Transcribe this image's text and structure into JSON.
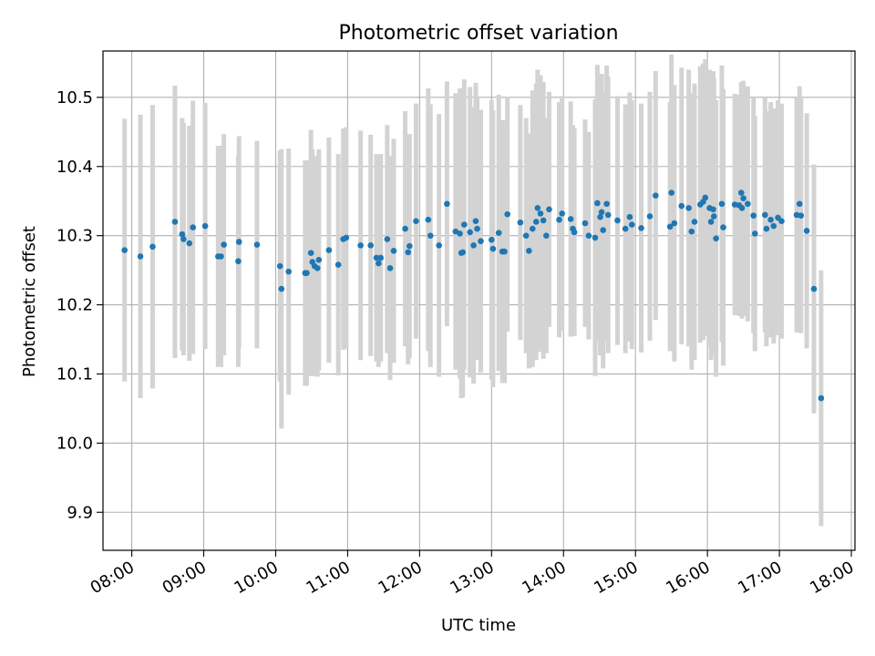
{
  "chart_data": {
    "type": "scatter",
    "title": "Photometric offset variation",
    "xlabel": "UTC time",
    "ylabel": "Photometric offset",
    "x_unit": "hours UTC",
    "xlim": [
      7.6,
      18.05
    ],
    "ylim": [
      9.845,
      10.567
    ],
    "grid": true,
    "xticks": [
      {
        "value": 8,
        "label": "08:00"
      },
      {
        "value": 9,
        "label": "09:00"
      },
      {
        "value": 10,
        "label": "10:00"
      },
      {
        "value": 11,
        "label": "11:00"
      },
      {
        "value": 12,
        "label": "12:00"
      },
      {
        "value": 13,
        "label": "13:00"
      },
      {
        "value": 14,
        "label": "14:00"
      },
      {
        "value": 15,
        "label": "15:00"
      },
      {
        "value": 16,
        "label": "16:00"
      },
      {
        "value": 17,
        "label": "17:00"
      },
      {
        "value": 18,
        "label": "18:00"
      }
    ],
    "yticks": [
      {
        "value": 9.9,
        "label": "9.9"
      },
      {
        "value": 10.0,
        "label": "10.0"
      },
      {
        "value": 10.1,
        "label": "10.1"
      },
      {
        "value": 10.2,
        "label": "10.2"
      },
      {
        "value": 10.3,
        "label": "10.3"
      },
      {
        "value": 10.4,
        "label": "10.4"
      },
      {
        "value": 10.5,
        "label": "10.5"
      }
    ],
    "colors": {
      "point": "#1f77b4",
      "errorbar": "#d3d3d3",
      "grid": "#b0b0b0"
    },
    "series": [
      {
        "x": [
          7.9,
          8.12,
          8.29,
          8.6,
          8.7,
          8.72,
          8.8,
          8.85,
          9.02,
          9.2,
          9.24,
          9.28,
          9.48,
          9.49,
          9.74,
          10.06,
          10.08,
          10.18,
          10.41,
          10.43,
          10.49,
          10.51,
          10.54,
          10.58,
          10.6,
          10.74,
          10.87,
          10.94,
          10.98,
          11.18,
          11.32,
          11.4,
          11.43,
          11.46,
          11.55,
          11.59,
          11.64,
          11.8,
          11.84,
          11.86,
          11.95,
          12.12,
          12.15,
          12.27,
          12.38,
          12.5,
          12.56,
          12.58,
          12.6,
          12.62,
          12.7,
          12.75,
          12.78,
          12.8,
          12.85,
          13.0,
          13.02,
          13.1,
          13.15,
          13.18,
          13.22,
          13.4,
          13.48,
          13.52,
          13.57,
          13.62,
          13.64,
          13.68,
          13.72,
          13.76,
          13.8,
          13.94,
          13.98,
          14.1,
          14.13,
          14.15,
          14.3,
          14.35,
          14.44,
          14.47,
          14.51,
          14.53,
          14.55,
          14.6,
          14.62,
          14.75,
          14.86,
          14.92,
          14.95,
          15.08,
          15.2,
          15.28,
          15.48,
          15.5,
          15.54,
          15.64,
          15.74,
          15.78,
          15.82,
          15.9,
          15.94,
          15.97,
          16.03,
          16.05,
          16.08,
          16.09,
          16.12,
          16.2,
          16.22,
          16.38,
          16.44,
          16.47,
          16.48,
          16.5,
          16.56,
          16.64,
          16.66,
          16.8,
          16.82,
          16.88,
          16.92,
          16.98,
          17.03,
          17.24,
          17.28,
          17.3,
          17.38,
          17.48,
          17.58
        ],
        "y": [
          10.279,
          10.27,
          10.284,
          10.32,
          10.302,
          10.295,
          10.289,
          10.312,
          10.314,
          10.27,
          10.27,
          10.287,
          10.263,
          10.291,
          10.287,
          10.256,
          10.223,
          10.248,
          10.246,
          10.246,
          10.275,
          10.262,
          10.256,
          10.253,
          10.265,
          10.279,
          10.258,
          10.295,
          10.297,
          10.286,
          10.286,
          10.268,
          10.26,
          10.268,
          10.295,
          10.253,
          10.278,
          10.31,
          10.276,
          10.285,
          10.321,
          10.323,
          10.3,
          10.286,
          10.346,
          10.306,
          10.303,
          10.275,
          10.276,
          10.316,
          10.305,
          10.286,
          10.321,
          10.31,
          10.292,
          10.294,
          10.281,
          10.304,
          10.277,
          10.277,
          10.331,
          10.319,
          10.3,
          10.278,
          10.31,
          10.32,
          10.34,
          10.332,
          10.322,
          10.3,
          10.338,
          10.323,
          10.332,
          10.324,
          10.31,
          10.305,
          10.318,
          10.3,
          10.297,
          10.347,
          10.327,
          10.334,
          10.308,
          10.346,
          10.33,
          10.322,
          10.31,
          10.327,
          10.316,
          10.311,
          10.328,
          10.358,
          10.313,
          10.362,
          10.318,
          10.343,
          10.34,
          10.306,
          10.32,
          10.345,
          10.349,
          10.355,
          10.34,
          10.32,
          10.338,
          10.328,
          10.296,
          10.346,
          10.312,
          10.345,
          10.344,
          10.362,
          10.34,
          10.354,
          10.346,
          10.329,
          10.303,
          10.33,
          10.31,
          10.323,
          10.314,
          10.326,
          10.321,
          10.33,
          10.346,
          10.329,
          10.307,
          10.223,
          10.065
        ],
        "err": [
          0.19,
          0.205,
          0.205,
          0.197,
          0.168,
          0.168,
          0.17,
          0.183,
          0.178,
          0.16,
          0.16,
          0.16,
          0.153,
          0.153,
          0.15,
          0.167,
          0.202,
          0.178,
          0.163,
          0.163,
          0.178,
          0.163,
          0.159,
          0.157,
          0.16,
          0.163,
          0.16,
          0.16,
          0.16,
          0.166,
          0.16,
          0.15,
          0.15,
          0.15,
          0.165,
          0.162,
          0.162,
          0.17,
          0.162,
          0.162,
          0.17,
          0.19,
          0.19,
          0.19,
          0.177,
          0.2,
          0.21,
          0.21,
          0.21,
          0.21,
          0.21,
          0.2,
          0.2,
          0.19,
          0.19,
          0.202,
          0.2,
          0.2,
          0.19,
          0.19,
          0.17,
          0.17,
          0.17,
          0.17,
          0.2,
          0.2,
          0.2,
          0.2,
          0.2,
          0.17,
          0.17,
          0.17,
          0.17,
          0.17,
          0.15,
          0.15,
          0.15,
          0.15,
          0.2,
          0.2,
          0.2,
          0.2,
          0.2,
          0.2,
          0.2,
          0.18,
          0.18,
          0.18,
          0.18,
          0.18,
          0.18,
          0.18,
          0.18,
          0.2,
          0.2,
          0.2,
          0.2,
          0.2,
          0.2,
          0.2,
          0.2,
          0.2,
          0.2,
          0.2,
          0.2,
          0.2,
          0.2,
          0.2,
          0.2,
          0.16,
          0.16,
          0.16,
          0.16,
          0.17,
          0.17,
          0.17,
          0.17,
          0.17,
          0.17,
          0.17,
          0.17,
          0.17,
          0.17,
          0.17,
          0.17,
          0.17,
          0.17,
          0.18,
          0.185
        ]
      }
    ]
  }
}
